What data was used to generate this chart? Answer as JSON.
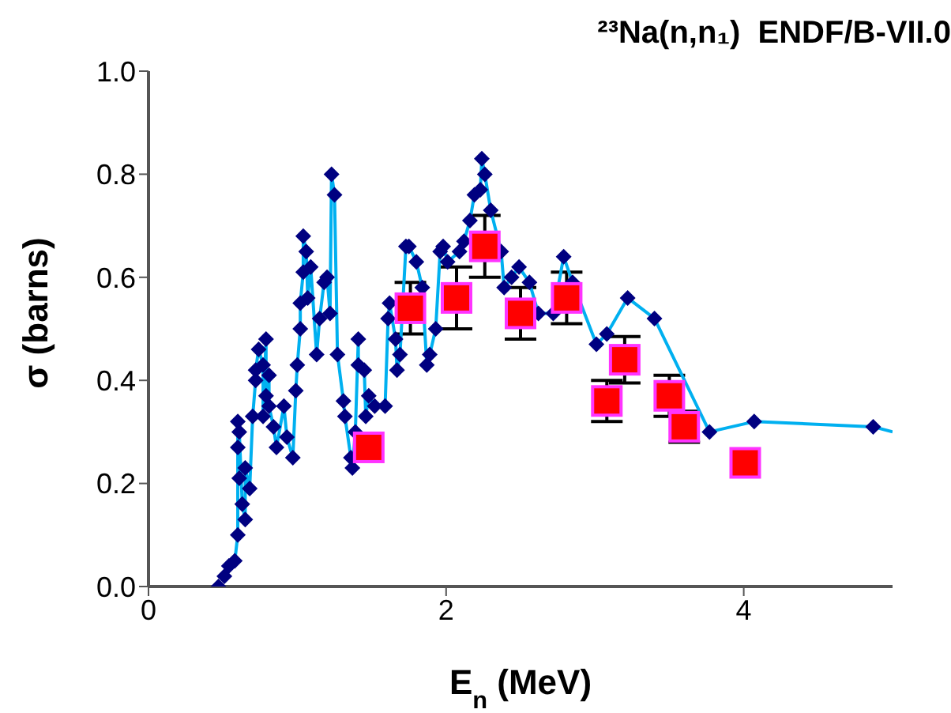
{
  "chart_data": {
    "type": "scatter",
    "title": "²³Na(n,n₁)  ENDF/B-VII.0",
    "xlabel": "E$_{n}$  (MeV)",
    "ylabel": "σ  (barns)",
    "xlim": [
      0,
      5
    ],
    "xticks": [
      0,
      2,
      4
    ],
    "ylim": [
      0,
      1
    ],
    "yticks": [
      {
        "value": 0,
        "label": "0.0"
      },
      {
        "value": 0.2,
        "label": "0.2"
      },
      {
        "value": 0.4,
        "label": "0.4"
      },
      {
        "value": 0.6,
        "label": "0.6"
      },
      {
        "value": 0.8,
        "label": "0.8"
      },
      {
        "value": 1,
        "label": "1.0"
      }
    ],
    "series": [
      {
        "type": "line",
        "color": "#00b0f0",
        "marker": "none",
        "x": [
          0.54,
          0.58,
          0.6,
          0.6,
          0.6,
          0.61,
          0.61,
          0.63,
          0.65,
          0.65,
          0.68,
          0.7,
          0.72,
          0.72,
          0.74,
          0.77,
          0.77,
          0.79,
          0.79,
          0.81,
          0.81,
          0.84,
          0.86,
          0.91,
          0.93,
          0.97,
          0.99,
          1.0,
          1.02,
          1.02,
          1.04,
          1.04,
          1.06,
          1.07,
          1.09,
          1.13,
          1.15,
          1.18,
          1.2,
          1.22,
          1.23,
          1.25,
          1.27,
          1.31,
          1.32,
          1.36,
          1.37,
          1.39,
          1.41,
          1.41,
          1.45,
          1.46,
          1.48,
          1.52,
          1.59,
          1.61,
          1.62,
          1.66,
          1.67,
          1.69,
          1.73,
          1.75,
          1.8,
          1.84,
          1.87,
          1.89,
          1.93,
          1.96,
          1.98,
          2.01,
          2.09,
          2.12,
          2.16,
          2.19,
          2.23,
          2.24,
          2.26,
          2.3,
          2.37,
          2.39,
          2.44,
          2.49,
          2.56,
          2.62,
          2.72,
          2.79,
          2.85,
          3.01,
          3.08,
          3.22,
          3.4,
          3.77,
          4.07,
          4.87,
          5.0
        ],
        "values": [
          0.04,
          0.05,
          0.1,
          0.27,
          0.32,
          0.21,
          0.3,
          0.16,
          0.13,
          0.23,
          0.19,
          0.33,
          0.4,
          0.42,
          0.46,
          0.43,
          0.33,
          0.48,
          0.37,
          0.41,
          0.35,
          0.31,
          0.27,
          0.35,
          0.29,
          0.25,
          0.38,
          0.43,
          0.5,
          0.55,
          0.61,
          0.68,
          0.65,
          0.56,
          0.62,
          0.45,
          0.52,
          0.59,
          0.6,
          0.53,
          0.8,
          0.76,
          0.45,
          0.36,
          0.33,
          0.25,
          0.23,
          0.3,
          0.48,
          0.43,
          0.42,
          0.33,
          0.37,
          0.35,
          0.35,
          0.52,
          0.55,
          0.48,
          0.42,
          0.45,
          0.66,
          0.66,
          0.63,
          0.58,
          0.43,
          0.45,
          0.5,
          0.65,
          0.66,
          0.63,
          0.65,
          0.67,
          0.71,
          0.76,
          0.77,
          0.83,
          0.8,
          0.73,
          0.65,
          0.58,
          0.6,
          0.62,
          0.59,
          0.53,
          0.53,
          0.64,
          0.59,
          0.47,
          0.49,
          0.56,
          0.52,
          0.3,
          0.32,
          0.31,
          0.3
        ]
      },
      {
        "color": "#000080",
        "marker": "diamond",
        "x": [
          0.47,
          0.51,
          0.54,
          0.58,
          0.6,
          0.6,
          0.6,
          0.61,
          0.61,
          0.63,
          0.65,
          0.65,
          0.68,
          0.7,
          0.72,
          0.72,
          0.74,
          0.77,
          0.77,
          0.79,
          0.79,
          0.81,
          0.81,
          0.84,
          0.86,
          0.91,
          0.93,
          0.97,
          0.99,
          1.0,
          1.02,
          1.02,
          1.04,
          1.04,
          1.06,
          1.07,
          1.09,
          1.13,
          1.15,
          1.18,
          1.2,
          1.22,
          1.23,
          1.25,
          1.27,
          1.31,
          1.32,
          1.36,
          1.37,
          1.39,
          1.41,
          1.41,
          1.45,
          1.46,
          1.48,
          1.52,
          1.59,
          1.61,
          1.62,
          1.66,
          1.67,
          1.69,
          1.73,
          1.75,
          1.8,
          1.84,
          1.87,
          1.89,
          1.93,
          1.96,
          1.98,
          2.01,
          2.09,
          2.12,
          2.16,
          2.19,
          2.23,
          2.24,
          2.26,
          2.3,
          2.37,
          2.39,
          2.44,
          2.49,
          2.56,
          2.62,
          2.72,
          2.79,
          2.85,
          3.01,
          3.08,
          3.22,
          3.4,
          3.77,
          4.07,
          4.87
        ],
        "values": [
          0,
          0.02,
          0.04,
          0.05,
          0.1,
          0.27,
          0.32,
          0.21,
          0.3,
          0.16,
          0.13,
          0.23,
          0.19,
          0.33,
          0.4,
          0.42,
          0.46,
          0.43,
          0.33,
          0.48,
          0.37,
          0.41,
          0.35,
          0.31,
          0.27,
          0.35,
          0.29,
          0.25,
          0.38,
          0.43,
          0.5,
          0.55,
          0.61,
          0.68,
          0.65,
          0.56,
          0.62,
          0.45,
          0.52,
          0.59,
          0.6,
          0.53,
          0.8,
          0.76,
          0.45,
          0.36,
          0.33,
          0.25,
          0.23,
          0.3,
          0.48,
          0.43,
          0.42,
          0.33,
          0.37,
          0.35,
          0.35,
          0.52,
          0.55,
          0.48,
          0.42,
          0.45,
          0.66,
          0.66,
          0.63,
          0.58,
          0.43,
          0.45,
          0.5,
          0.65,
          0.66,
          0.63,
          0.65,
          0.67,
          0.71,
          0.76,
          0.77,
          0.83,
          0.8,
          0.73,
          0.65,
          0.58,
          0.6,
          0.62,
          0.59,
          0.53,
          0.53,
          0.64,
          0.59,
          0.47,
          0.49,
          0.56,
          0.52,
          0.3,
          0.32,
          0.31
        ]
      },
      {
        "color": "#ff0000",
        "marker": "square",
        "x": [
          1.48,
          1.76,
          2.07,
          2.26,
          2.5,
          2.81,
          3.08,
          3.2,
          3.5,
          3.6,
          4.01
        ],
        "values": [
          0.27,
          0.54,
          0.56,
          0.66,
          0.53,
          0.56,
          0.36,
          0.44,
          0.37,
          0.31,
          0.24
        ],
        "errors": [
          null,
          0.05,
          0.06,
          0.06,
          0.05,
          0.05,
          0.04,
          0.045,
          0.04,
          0.03,
          null
        ]
      }
    ]
  }
}
